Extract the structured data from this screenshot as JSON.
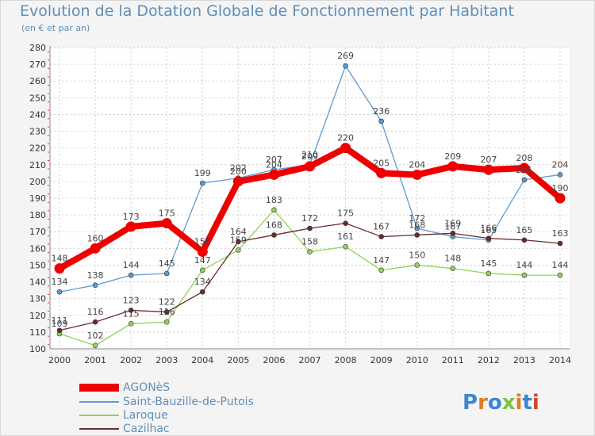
{
  "title": "Evolution de la Dotation Globale de Fonctionnement par Habitant",
  "subtitle": "(en € et par an)",
  "brand": "Proxiti",
  "chart_data": {
    "type": "line",
    "title": "Evolution de la Dotation Globale de Fonctionnement par Habitant",
    "subtitle": "(en € et par an)",
    "xlabel": "",
    "ylabel": "",
    "x": [
      "2000",
      "2001",
      "2002",
      "2003",
      "2004",
      "2005",
      "2006",
      "2007",
      "2008",
      "2009",
      "2010",
      "2011",
      "2012",
      "2013",
      "2014"
    ],
    "ylim": [
      100,
      280
    ],
    "yticks": [
      100,
      110,
      120,
      130,
      140,
      150,
      160,
      170,
      180,
      190,
      200,
      210,
      220,
      230,
      240,
      250,
      260,
      270,
      280
    ],
    "grid": true,
    "legend_position": "bottom-left",
    "series": [
      {
        "name": "AGONèS",
        "color": "#ee0000",
        "values": [
          148,
          160,
          173,
          175,
          158,
          200,
          204,
          209,
          220,
          205,
          204,
          209,
          207,
          208,
          190
        ]
      },
      {
        "name": "Saint-Bauzille-de-Putois",
        "color": "#5b9bd5",
        "values": [
          134,
          138,
          144,
          145,
          199,
          202,
          207,
          210,
          269,
          236,
          172,
          167,
          165,
          201,
          204
        ]
      },
      {
        "name": "Laroque",
        "color": "#8fd35a",
        "values": [
          109,
          102,
          115,
          116,
          147,
          159,
          183,
          158,
          161,
          147,
          150,
          148,
          145,
          144,
          144
        ]
      },
      {
        "name": "Cazilhac",
        "color": "#6b2a2a",
        "values": [
          111,
          116,
          123,
          122,
          134,
          164,
          168,
          172,
          175,
          167,
          168,
          169,
          166,
          165,
          163
        ]
      }
    ]
  }
}
